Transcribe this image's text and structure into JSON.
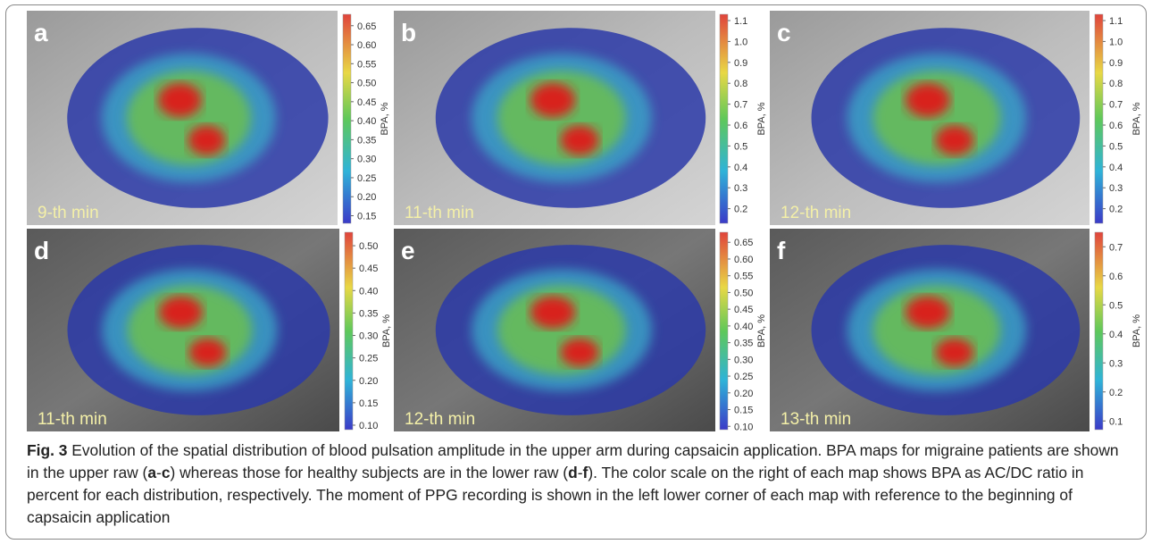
{
  "panels": [
    {
      "letter": "a",
      "time": "9-th min",
      "colorbar": {
        "label": "BPA, %",
        "range": [
          0.13,
          0.68
        ],
        "ticks": [
          0.15,
          {
            "value": 0.2,
            "label": "0.20"
          },
          0.25,
          {
            "value": 0.3,
            "label": "0.30"
          },
          0.35,
          {
            "value": 0.4,
            "label": "0.40"
          },
          0.45,
          {
            "value": 0.5,
            "label": "0.50"
          },
          0.55,
          {
            "value": 0.6,
            "label": "0.60"
          },
          0.65
        ]
      }
    },
    {
      "letter": "b",
      "time": "11-th min",
      "colorbar": {
        "label": "BPA, %",
        "range": [
          0.13,
          1.13
        ],
        "ticks": [
          0.2,
          0.3,
          0.4,
          0.5,
          0.6,
          0.7,
          0.8,
          0.9,
          {
            "value": 1,
            "label": "1.0"
          },
          1.1
        ]
      }
    },
    {
      "letter": "c",
      "time": "12-th min",
      "colorbar": {
        "label": "BPA, %",
        "range": [
          0.13,
          1.13
        ],
        "ticks": [
          0.2,
          0.3,
          0.4,
          0.5,
          0.6,
          0.7,
          0.8,
          0.9,
          {
            "value": 1,
            "label": "1.0"
          },
          1.1
        ]
      }
    },
    {
      "letter": "d",
      "time": "11-th min",
      "colorbar": {
        "label": "BPA, %",
        "range": [
          0.09,
          0.53
        ],
        "ticks": [
          {
            "value": 0.1,
            "label": "0.10"
          },
          0.15,
          {
            "value": 0.2,
            "label": "0.20"
          },
          0.25,
          {
            "value": 0.3,
            "label": "0.30"
          },
          0.35,
          {
            "value": 0.4,
            "label": "0.40"
          },
          0.45,
          {
            "value": 0.5,
            "label": "0.50"
          }
        ]
      }
    },
    {
      "letter": "e",
      "time": "12-th min",
      "colorbar": {
        "label": "BPA, %",
        "range": [
          0.09,
          0.68
        ],
        "ticks": [
          {
            "value": 0.1,
            "label": "0.10"
          },
          0.15,
          {
            "value": 0.2,
            "label": "0.20"
          },
          0.25,
          {
            "value": 0.3,
            "label": "0.30"
          },
          0.35,
          {
            "value": 0.4,
            "label": "0.40"
          },
          0.45,
          {
            "value": 0.5,
            "label": "0.50"
          },
          0.55,
          {
            "value": 0.6,
            "label": "0.60"
          },
          0.65
        ]
      }
    },
    {
      "letter": "f",
      "time": "13-th min",
      "colorbar": {
        "label": "BPA, %",
        "range": [
          0.07,
          0.75
        ],
        "ticks": [
          0.1,
          0.2,
          0.3,
          0.4,
          0.5,
          0.6,
          0.7
        ]
      }
    }
  ],
  "caption": {
    "label": "Fig. 3",
    "parts": [
      " Evolution of the spatial distribution of blood pulsation amplitude in the upper arm during capsaicin application. BPA maps for migraine patients are shown in the upper raw (",
      "a",
      "-",
      "c",
      ") whereas those for healthy subjects are in the lower raw (",
      "d",
      "-",
      "f",
      "). The color scale on the right of each map shows BPA as AC/DC ratio in percent for each distribution, respectively. The moment of PPG recording is shown in the left lower corner of each map with reference to the beginning of capsaicin application"
    ]
  }
}
